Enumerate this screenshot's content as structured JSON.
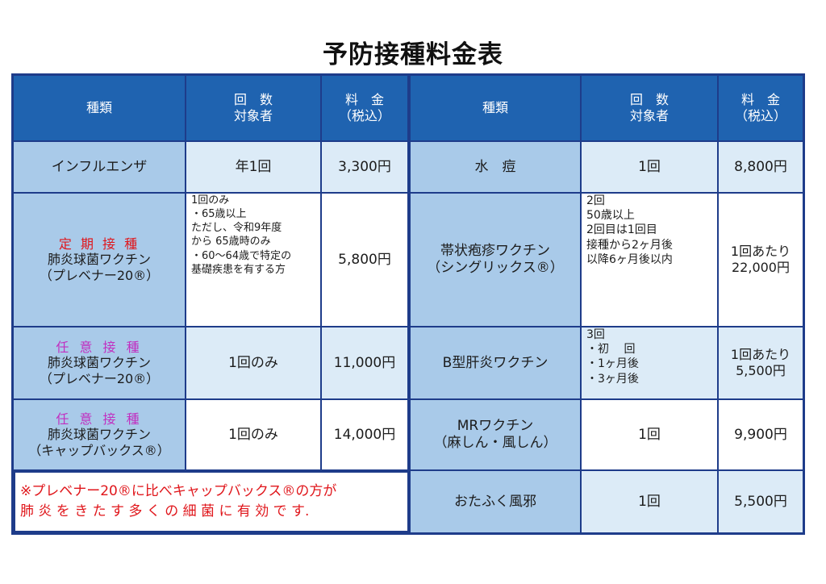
{
  "title": "予防接種料金表",
  "header": {
    "type": "種類",
    "count_line1": "回　数",
    "count_line2": "対象者",
    "price_line1": "料　金",
    "price_line2": "（税込）"
  },
  "left_rows": [
    {
      "name": "インフルエンザ",
      "count": "年1回",
      "price": "3,300円"
    },
    {
      "tag": "定 期 接 種",
      "name1": "肺炎球菌ワクチン",
      "name2": "（プレベナー20®）",
      "count_lines": [
        "1回のみ",
        "・65歳以上",
        "ただし、令和9年度",
        "から 65歳時のみ",
        "・60～64歳で特定の",
        "基礎疾患を有する方"
      ],
      "price": "5,800円"
    },
    {
      "tag": "任 意 接 種",
      "name1": "肺炎球菌ワクチン",
      "name2": "（プレベナー20®）",
      "count": "1回のみ",
      "price": "11,000円"
    },
    {
      "tag": "任 意 接 種",
      "name1": "肺炎球菌ワクチン",
      "name2": "（キャップバックス®）",
      "count": "1回のみ",
      "price": "14,000円"
    }
  ],
  "note": {
    "line1": "※プレベナー20®に比べキャップバックス®の方が",
    "line2": "肺 炎 を き た す 多 く の 細 菌 に 有 効 で す."
  },
  "right_rows": [
    {
      "name": "水　痘",
      "count": "1回",
      "price": "8,800円"
    },
    {
      "name1": "帯状疱疹ワクチン",
      "name2": "（シングリックス®）",
      "count_lines": [
        "2回",
        "50歳以上",
        "2回目は1回目",
        "接種から2ヶ月後",
        "以降6ヶ月後以内"
      ],
      "price_lines": [
        "1回あたり",
        "22,000円"
      ]
    },
    {
      "name": "B型肝炎ワクチン",
      "count_lines": [
        "3回",
        "・初　 回",
        "・1ヶ月後",
        "・3ヶ月後"
      ],
      "price_lines": [
        "1回あたり",
        "5,500円"
      ]
    },
    {
      "name1": "MRワクチン",
      "name2": "（麻しん・風しん）",
      "count": "1回",
      "price": "9,900円"
    },
    {
      "name": "おたふく風邪",
      "count": "1回",
      "price": "5,500円"
    }
  ]
}
